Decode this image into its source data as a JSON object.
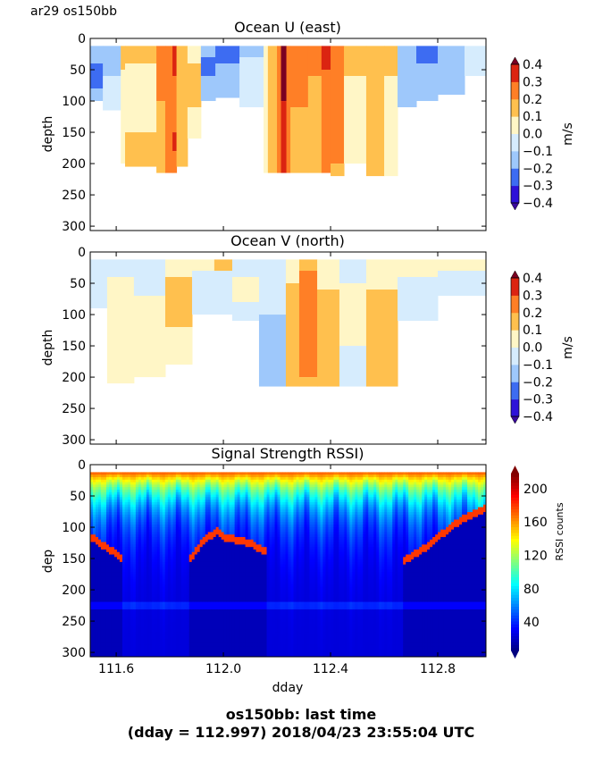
{
  "figure": {
    "suptitle": "ar29 os150bb",
    "footer_line1": "os150bb: last time",
    "footer_line2": "(dday = 112.997) 2018/04/23 23:55:04 UTC"
  },
  "chart_data": [
    {
      "type": "heatmap",
      "title": "Ocean U (east)",
      "ylabel": "depth",
      "xlim": [
        111.503,
        112.98
      ],
      "ylim": [
        307,
        0
      ],
      "yticks": [
        0,
        50,
        100,
        150,
        200,
        250,
        300
      ],
      "xticks": [
        111.6,
        112.0,
        112.4,
        112.8
      ],
      "xtick_labels_shown": false,
      "top_depth": 12,
      "colorbar": {
        "label": "m/s",
        "levels": [
          -0.4,
          -0.3,
          -0.2,
          -0.1,
          0.0,
          0.1,
          0.2,
          0.3,
          0.4
        ],
        "tick_labels": [
          "0.4",
          "0.3",
          "0.2",
          "0.1",
          "0.0",
          "−0.1",
          "−0.2",
          "−0.3",
          "−0.4"
        ],
        "extend": "both"
      },
      "columns": [
        {
          "dday": [
            111.503,
            111.55
          ],
          "segments": [
            [
              -0.15,
              40
            ],
            [
              -0.25,
              80
            ],
            [
              -0.15,
              100
            ]
          ]
        },
        {
          "dday": [
            111.55,
            111.617
          ],
          "segments": [
            [
              -0.15,
              60
            ],
            [
              -0.05,
              115
            ]
          ]
        },
        {
          "dday": [
            111.617,
            111.633
          ],
          "segments": [
            [
              0.15,
              50
            ],
            [
              0.0,
              200
            ]
          ]
        },
        {
          "dday": [
            111.633,
            111.75
          ],
          "segments": [
            [
              0.15,
              40
            ],
            [
              0.05,
              150
            ],
            [
              0.1,
              205
            ]
          ]
        },
        {
          "dday": [
            111.75,
            111.783
          ],
          "segments": [
            [
              0.25,
              100
            ],
            [
              0.15,
              215
            ]
          ]
        },
        {
          "dday": [
            111.783,
            111.81
          ],
          "segments": [
            [
              0.25,
              215
            ]
          ]
        },
        {
          "dday": [
            111.81,
            111.825
          ],
          "segments": [
            [
              0.35,
              60
            ],
            [
              0.25,
              150
            ],
            [
              0.3,
              180
            ],
            [
              0.2,
              215
            ]
          ]
        },
        {
          "dday": [
            111.825,
            111.866
          ],
          "segments": [
            [
              0.15,
              205
            ]
          ]
        },
        {
          "dday": [
            111.866,
            111.916
          ],
          "segments": [
            [
              0.05,
              40
            ],
            [
              0.15,
              110
            ],
            [
              0.05,
              160
            ]
          ]
        },
        {
          "dday": [
            111.916,
            111.97
          ],
          "segments": [
            [
              -0.15,
              30
            ],
            [
              -0.25,
              60
            ],
            [
              -0.15,
              100
            ]
          ]
        },
        {
          "dday": [
            111.97,
            112.06
          ],
          "segments": [
            [
              -0.3,
              40
            ],
            [
              -0.15,
              95
            ]
          ]
        },
        {
          "dday": [
            112.06,
            112.15
          ],
          "segments": [
            [
              -0.15,
              30
            ],
            [
              -0.05,
              110
            ]
          ]
        },
        {
          "dday": [
            112.15,
            112.166
          ],
          "segments": [
            [
              0.0,
              215
            ]
          ]
        },
        {
          "dday": [
            112.166,
            112.2
          ],
          "segments": [
            [
              0.15,
              215
            ]
          ]
        },
        {
          "dday": [
            112.2,
            112.215
          ],
          "segments": [
            [
              0.25,
              215
            ]
          ]
        },
        {
          "dday": [
            112.215,
            112.235
          ],
          "segments": [
            [
              0.42,
              100
            ],
            [
              0.35,
              215
            ]
          ]
        },
        {
          "dday": [
            112.235,
            112.25
          ],
          "segments": [
            [
              0.25,
              215
            ]
          ]
        },
        {
          "dday": [
            112.25,
            112.316
          ],
          "segments": [
            [
              0.25,
              110
            ],
            [
              0.15,
              215
            ]
          ]
        },
        {
          "dday": [
            112.316,
            112.366
          ],
          "segments": [
            [
              0.25,
              60
            ],
            [
              0.15,
              215
            ]
          ]
        },
        {
          "dday": [
            112.366,
            112.4
          ],
          "segments": [
            [
              0.35,
              50
            ],
            [
              0.25,
              215
            ]
          ]
        },
        {
          "dday": [
            112.4,
            112.45
          ],
          "segments": [
            [
              0.25,
              200
            ],
            [
              0.15,
              220
            ]
          ]
        },
        {
          "dday": [
            112.45,
            112.533
          ],
          "segments": [
            [
              0.15,
              60
            ],
            [
              0.05,
              200
            ]
          ]
        },
        {
          "dday": [
            112.533,
            112.6
          ],
          "segments": [
            [
              0.15,
              220
            ]
          ]
        },
        {
          "dday": [
            112.6,
            112.65
          ],
          "segments": [
            [
              0.15,
              60
            ],
            [
              0.05,
              220
            ]
          ]
        },
        {
          "dday": [
            112.65,
            112.72
          ],
          "segments": [
            [
              -0.15,
              110
            ]
          ]
        },
        {
          "dday": [
            112.72,
            112.8
          ],
          "segments": [
            [
              -0.25,
              40
            ],
            [
              -0.15,
              100
            ]
          ]
        },
        {
          "dday": [
            112.8,
            112.9
          ],
          "segments": [
            [
              -0.15,
              90
            ]
          ]
        },
        {
          "dday": [
            112.9,
            112.98
          ],
          "segments": [
            [
              -0.05,
              60
            ]
          ]
        }
      ]
    },
    {
      "type": "heatmap",
      "title": "Ocean V (north)",
      "ylabel": "depth",
      "xlim": [
        111.503,
        112.98
      ],
      "ylim": [
        307,
        0
      ],
      "yticks": [
        0,
        50,
        100,
        150,
        200,
        250,
        300
      ],
      "xticks": [
        111.6,
        112.0,
        112.4,
        112.8
      ],
      "xtick_labels_shown": false,
      "top_depth": 12,
      "colorbar": {
        "label": "m/s",
        "levels": [
          -0.4,
          -0.3,
          -0.2,
          -0.1,
          0.0,
          0.1,
          0.2,
          0.3,
          0.4
        ],
        "tick_labels": [
          "0.4",
          "0.3",
          "0.2",
          "0.1",
          "0.0",
          "−0.1",
          "−0.2",
          "−0.3",
          "−0.4"
        ],
        "extend": "both"
      },
      "columns": [
        {
          "dday": [
            111.503,
            111.566
          ],
          "segments": [
            [
              -0.05,
              90
            ]
          ]
        },
        {
          "dday": [
            111.566,
            111.666
          ],
          "segments": [
            [
              -0.05,
              40
            ],
            [
              0.05,
              210
            ]
          ]
        },
        {
          "dday": [
            111.666,
            111.783
          ],
          "segments": [
            [
              -0.05,
              70
            ],
            [
              0.05,
              200
            ]
          ]
        },
        {
          "dday": [
            111.783,
            111.883
          ],
          "segments": [
            [
              0.05,
              40
            ],
            [
              0.15,
              120
            ],
            [
              0.05,
              180
            ]
          ]
        },
        {
          "dday": [
            111.883,
            111.966
          ],
          "segments": [
            [
              0.05,
              30
            ],
            [
              -0.05,
              100
            ]
          ]
        },
        {
          "dday": [
            111.966,
            112.033
          ],
          "segments": [
            [
              0.15,
              30
            ],
            [
              -0.05,
              100
            ]
          ]
        },
        {
          "dday": [
            112.033,
            112.133
          ],
          "segments": [
            [
              -0.05,
              40
            ],
            [
              0.05,
              80
            ],
            [
              -0.05,
              110
            ]
          ]
        },
        {
          "dday": [
            112.133,
            112.233
          ],
          "segments": [
            [
              -0.05,
              100
            ],
            [
              -0.12,
              215
            ]
          ]
        },
        {
          "dday": [
            112.233,
            112.283
          ],
          "segments": [
            [
              0.05,
              50
            ],
            [
              0.15,
              215
            ]
          ]
        },
        {
          "dday": [
            112.283,
            112.35
          ],
          "segments": [
            [
              0.1,
              30
            ],
            [
              0.25,
              200
            ],
            [
              0.15,
              215
            ]
          ]
        },
        {
          "dday": [
            112.35,
            112.433
          ],
          "segments": [
            [
              0.05,
              60
            ],
            [
              0.1,
              215
            ]
          ]
        },
        {
          "dday": [
            112.433,
            112.533
          ],
          "segments": [
            [
              -0.05,
              50
            ],
            [
              0.05,
              150
            ],
            [
              -0.05,
              215
            ]
          ]
        },
        {
          "dday": [
            112.533,
            112.65
          ],
          "segments": [
            [
              0.05,
              60
            ],
            [
              0.15,
              215
            ]
          ]
        },
        {
          "dday": [
            112.65,
            112.8
          ],
          "segments": [
            [
              0.05,
              40
            ],
            [
              -0.05,
              110
            ]
          ]
        },
        {
          "dday": [
            112.8,
            112.98
          ],
          "segments": [
            [
              0.05,
              30
            ],
            [
              -0.05,
              70
            ]
          ]
        }
      ]
    },
    {
      "type": "heatmap",
      "title": "Signal Strength RSSI)",
      "xlabel": "dday",
      "ylabel": "dep",
      "xlim": [
        111.503,
        112.98
      ],
      "ylim": [
        307,
        0
      ],
      "yticks": [
        0,
        50,
        100,
        150,
        200,
        250,
        300
      ],
      "xticks": [
        111.6,
        112.0,
        112.4,
        112.8
      ],
      "xtick_labels": [
        "111.6",
        "112.0",
        "112.4",
        "112.8"
      ],
      "top_depth": 12,
      "colormap": "jet",
      "colorbar": {
        "label": "RSSI counts",
        "range": [
          6,
          218
        ],
        "ticks": [
          40,
          80,
          120,
          160,
          200
        ],
        "extend": "both"
      },
      "surface_rssi": 175,
      "background_rssi": 25,
      "interference_band_depth": [
        218,
        232
      ],
      "bottom_echo": [
        {
          "dday": 111.503,
          "depth": 115
        },
        {
          "dday": 111.626,
          "depth": 150
        },
        {
          "dday": 111.633,
          "depth": null
        },
        {
          "dday": 111.873,
          "depth": null
        },
        {
          "dday": 111.876,
          "depth": 150
        },
        {
          "dday": 111.93,
          "depth": 120
        },
        {
          "dday": 111.98,
          "depth": 105
        },
        {
          "dday": 112.0,
          "depth": 115
        },
        {
          "dday": 112.1,
          "depth": 125
        },
        {
          "dday": 112.16,
          "depth": 140
        },
        {
          "dday": 112.163,
          "depth": null
        },
        {
          "dday": 112.663,
          "depth": null
        },
        {
          "dday": 112.666,
          "depth": 155
        },
        {
          "dday": 112.766,
          "depth": 130
        },
        {
          "dday": 112.833,
          "depth": 105
        },
        {
          "dday": 112.9,
          "depth": 85
        },
        {
          "dday": 112.98,
          "depth": 70
        }
      ]
    }
  ]
}
